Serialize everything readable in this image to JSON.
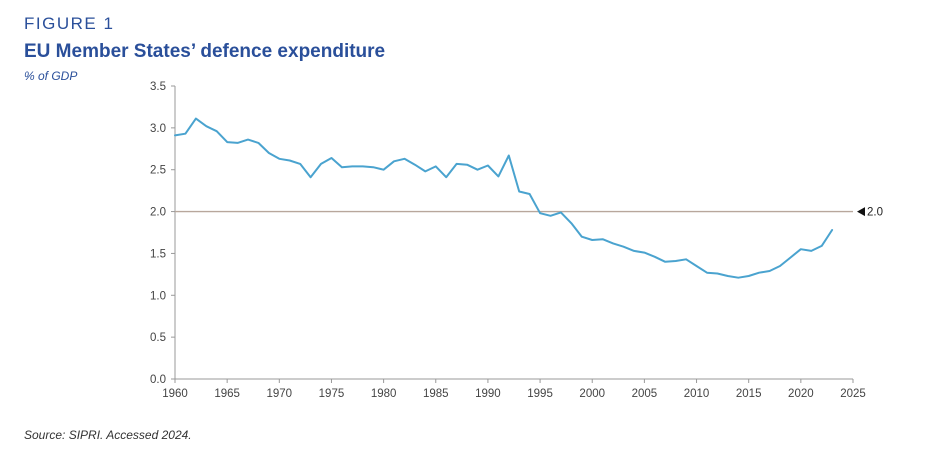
{
  "figure_label": "FIGURE 1",
  "title": "EU Member States’ defence expenditure",
  "subtitle": "% of GDP",
  "source": "Source: SIPRI. Accessed 2024.",
  "colors": {
    "line": "#4aa3cf",
    "reference_line": "#b8a79c",
    "axis": "#999999",
    "heading": "#2a4f9a"
  },
  "chart_data": {
    "type": "line",
    "title": "EU Member States’ defence expenditure",
    "ylabel": "% of GDP",
    "xlim": [
      1960,
      2025
    ],
    "ylim": [
      0,
      3.5
    ],
    "xticks": [
      1960,
      1965,
      1970,
      1975,
      1980,
      1985,
      1990,
      1995,
      2000,
      2005,
      2010,
      2015,
      2020,
      2025
    ],
    "yticks": [
      0.0,
      0.5,
      1.0,
      1.5,
      2.0,
      2.5,
      3.0,
      3.5
    ],
    "ytick_labels": [
      "0.0",
      "0.5",
      "1.0",
      "1.5",
      "2.0",
      "2.5",
      "3.0",
      "3.5"
    ],
    "grid": false,
    "reference_line": {
      "y": 2.0,
      "label": "2.0"
    },
    "series": [
      {
        "x": [
          1960,
          1961,
          1962,
          1963,
          1964,
          1965,
          1966,
          1967,
          1968,
          1969,
          1970,
          1971,
          1972,
          1973,
          1974,
          1975,
          1976,
          1977,
          1978,
          1979,
          1980,
          1981,
          1982,
          1983,
          1984,
          1985,
          1986,
          1987,
          1988,
          1989,
          1990,
          1991,
          1992,
          1993,
          1994,
          1995,
          1996,
          1997,
          1998,
          1999,
          2000,
          2001,
          2002,
          2003,
          2004,
          2005,
          2006,
          2007,
          2008,
          2009,
          2010,
          2011,
          2012,
          2013,
          2014,
          2015,
          2016,
          2017,
          2018,
          2019,
          2020,
          2021,
          2022,
          2023
        ],
        "values": [
          2.91,
          2.93,
          3.11,
          3.02,
          2.96,
          2.83,
          2.82,
          2.86,
          2.82,
          2.7,
          2.63,
          2.61,
          2.57,
          2.41,
          2.57,
          2.64,
          2.53,
          2.54,
          2.54,
          2.53,
          2.5,
          2.6,
          2.63,
          2.56,
          2.48,
          2.54,
          2.41,
          2.57,
          2.56,
          2.5,
          2.55,
          2.42,
          2.67,
          2.24,
          2.21,
          1.98,
          1.95,
          1.99,
          1.86,
          1.7,
          1.66,
          1.67,
          1.62,
          1.58,
          1.53,
          1.51,
          1.46,
          1.4,
          1.41,
          1.43,
          1.35,
          1.27,
          1.26,
          1.23,
          1.21,
          1.23,
          1.27,
          1.29,
          1.35,
          1.45,
          1.55,
          1.53,
          1.59,
          1.78
        ]
      }
    ]
  }
}
